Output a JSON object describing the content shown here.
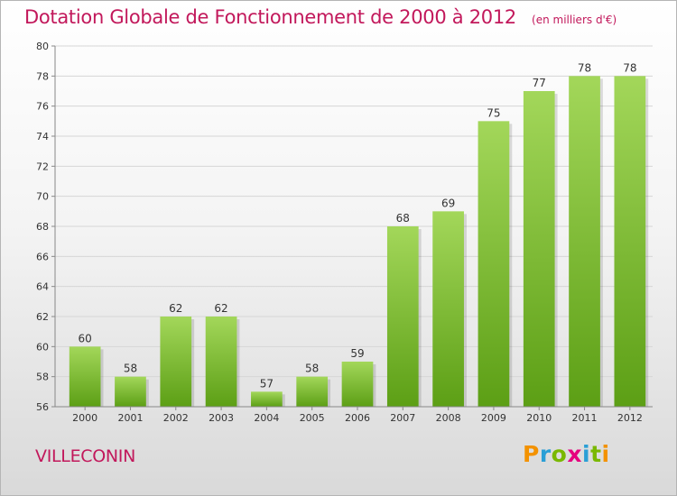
{
  "title": "Dotation Globale de Fonctionnement de 2000 à 2012",
  "subtitle": "(en milliers d'€)",
  "place": "VILLECONIN",
  "logo": {
    "letters": [
      "P",
      "r",
      "o",
      "x",
      "i",
      "t",
      "i"
    ],
    "colors": [
      "#f39200",
      "#2a9fd6",
      "#7ab800",
      "#e6007e",
      "#2a9fd6",
      "#7ab800",
      "#f39200"
    ]
  },
  "colors": {
    "title": "#c2185b",
    "bar_top": "#a3d75a",
    "bar_bottom": "#5c9f15",
    "grid": "#d6d6d6",
    "axis": "#888888"
  },
  "chart_data": {
    "type": "bar",
    "categories": [
      "2000",
      "2001",
      "2002",
      "2003",
      "2004",
      "2005",
      "2006",
      "2007",
      "2008",
      "2009",
      "2010",
      "2011",
      "2012"
    ],
    "values": [
      60,
      58,
      62,
      62,
      57,
      58,
      59,
      68,
      69,
      75,
      77,
      78,
      78
    ],
    "ylim": [
      56,
      80
    ],
    "yticks": [
      56,
      58,
      60,
      62,
      64,
      66,
      68,
      70,
      72,
      74,
      76,
      78,
      80
    ],
    "grid": true,
    "show_value_labels": true
  }
}
